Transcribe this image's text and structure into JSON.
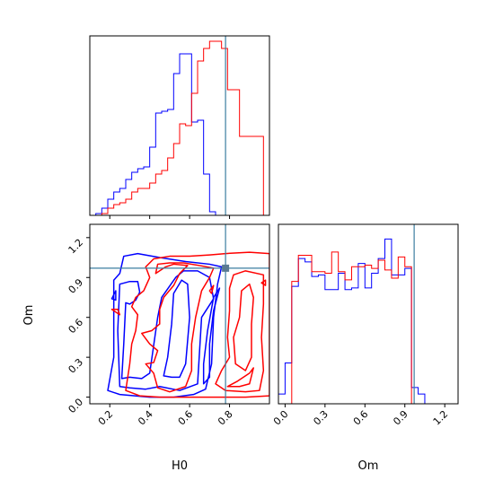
{
  "chart_data": {
    "type": "corner",
    "parameters": [
      "H0",
      "Om"
    ],
    "truth": {
      "H0": 0.78,
      "Om": 0.97
    },
    "truth_color": "#3b7ea1",
    "series": [
      {
        "color": "#0000ff"
      },
      {
        "color": "#ff0000"
      }
    ],
    "xlabel_h0": "H0",
    "xlabel_om": "Om",
    "ylabel_om": "Om",
    "h0_axis": {
      "range": [
        0.1,
        1.0
      ],
      "ticks": [
        "0.2",
        "0.4",
        "0.6",
        "0.8"
      ]
    },
    "om_axis": {
      "range": [
        -0.05,
        1.3
      ],
      "ticks": [
        "0.0",
        "0.3",
        "0.6",
        "0.9",
        "1.2"
      ]
    },
    "h0_hist": {
      "edges": [
        0.1,
        0.13,
        0.16,
        0.19,
        0.22,
        0.25,
        0.28,
        0.31,
        0.34,
        0.37,
        0.4,
        0.43,
        0.46,
        0.49,
        0.52,
        0.55,
        0.58,
        0.61,
        0.64,
        0.67,
        0.7,
        0.73,
        0.76,
        0.79,
        0.82,
        0.85,
        0.88,
        0.91,
        0.94,
        0.97,
        1.0
      ],
      "blue": [
        0,
        0.01,
        0.04,
        0.09,
        0.13,
        0.15,
        0.2,
        0.24,
        0.26,
        0.27,
        0.38,
        0.57,
        0.58,
        0.59,
        0.79,
        0.9,
        0.9,
        0.52,
        0.53,
        0.23,
        0.02,
        0,
        0,
        0,
        0,
        0,
        0,
        0,
        0,
        0
      ],
      "red": [
        0,
        0,
        0.01,
        0.04,
        0.06,
        0.07,
        0.09,
        0.13,
        0.15,
        0.15,
        0.18,
        0.23,
        0.25,
        0.32,
        0.4,
        0.51,
        0.5,
        0.68,
        0.86,
        0.93,
        0.97,
        0.97,
        0.93,
        0.7,
        0.7,
        0.44,
        0.44,
        0.44,
        0.44,
        0
      ]
    },
    "om_hist": {
      "edges": [
        -0.05,
        0.0,
        0.05,
        0.1,
        0.15,
        0.2,
        0.25,
        0.3,
        0.35,
        0.4,
        0.45,
        0.5,
        0.55,
        0.6,
        0.65,
        0.7,
        0.75,
        0.8,
        0.85,
        0.9,
        0.95,
        1.0,
        1.05,
        1.1
      ],
      "blue": [
        0.06,
        0.25,
        0.72,
        0.89,
        0.87,
        0.78,
        0.79,
        0.7,
        0.7,
        0.8,
        0.7,
        0.71,
        0.86,
        0.71,
        0.8,
        0.89,
        1.01,
        0.79,
        0.79,
        0.83,
        0.1,
        0.06,
        0
      ],
      "red": [
        0,
        0,
        0.75,
        0.91,
        0.91,
        0.81,
        0.81,
        0.8,
        0.93,
        0.81,
        0.76,
        0.84,
        0.84,
        0.85,
        0.83,
        0.88,
        0.82,
        0.77,
        0.9,
        0.84,
        0,
        0,
        0
      ]
    },
    "contours": {
      "blue": [
        [
          [
            0.19,
            0.05
          ],
          [
            0.25,
            0.02
          ],
          [
            0.4,
            0.0
          ],
          [
            0.52,
            0.0
          ],
          [
            0.62,
            0.02
          ],
          [
            0.68,
            0.06
          ],
          [
            0.71,
            0.25
          ],
          [
            0.72,
            0.6
          ],
          [
            0.74,
            0.85
          ],
          [
            0.76,
            0.98
          ],
          [
            0.7,
            1.0
          ],
          [
            0.58,
            1.02
          ],
          [
            0.45,
            1.05
          ],
          [
            0.34,
            1.08
          ],
          [
            0.27,
            1.06
          ],
          [
            0.25,
            0.93
          ],
          [
            0.22,
            0.88
          ],
          [
            0.22,
            0.3
          ],
          [
            0.19,
            0.05
          ]
        ],
        [
          [
            0.25,
            0.85
          ],
          [
            0.3,
            0.87
          ],
          [
            0.34,
            0.87
          ],
          [
            0.35,
            0.79
          ],
          [
            0.33,
            0.73
          ],
          [
            0.3,
            0.7
          ],
          [
            0.28,
            0.71
          ],
          [
            0.27,
            0.4
          ],
          [
            0.26,
            0.14
          ],
          [
            0.3,
            0.15
          ],
          [
            0.36,
            0.14
          ],
          [
            0.4,
            0.18
          ],
          [
            0.44,
            0.6
          ],
          [
            0.46,
            0.75
          ],
          [
            0.53,
            0.9
          ],
          [
            0.57,
            0.95
          ],
          [
            0.64,
            0.95
          ],
          [
            0.7,
            0.9
          ],
          [
            0.72,
            0.74
          ],
          [
            0.66,
            0.6
          ],
          [
            0.64,
            0.1
          ],
          [
            0.55,
            0.05
          ],
          [
            0.45,
            0.08
          ],
          [
            0.38,
            0.06
          ],
          [
            0.3,
            0.07
          ],
          [
            0.25,
            0.08
          ],
          [
            0.24,
            0.5
          ],
          [
            0.25,
            0.85
          ]
        ],
        [
          [
            0.47,
            0.16
          ],
          [
            0.51,
            0.15
          ],
          [
            0.55,
            0.15
          ],
          [
            0.58,
            0.25
          ],
          [
            0.6,
            0.6
          ],
          [
            0.59,
            0.85
          ],
          [
            0.56,
            0.88
          ],
          [
            0.52,
            0.78
          ],
          [
            0.51,
            0.55
          ],
          [
            0.49,
            0.3
          ],
          [
            0.47,
            0.16
          ]
        ],
        [
          [
            0.67,
            0.1
          ],
          [
            0.7,
            0.15
          ],
          [
            0.7,
            0.4
          ],
          [
            0.72,
            0.65
          ],
          [
            0.75,
            0.82
          ],
          [
            0.72,
            0.75
          ],
          [
            0.69,
            0.5
          ],
          [
            0.67,
            0.25
          ],
          [
            0.67,
            0.1
          ]
        ],
        [
          [
            0.21,
            0.74
          ],
          [
            0.23,
            0.8
          ],
          [
            0.23,
            0.73
          ],
          [
            0.21,
            0.74
          ]
        ]
      ],
      "red": [
        [
          [
            0.28,
            0.05
          ],
          [
            0.35,
            0.01
          ],
          [
            0.45,
            0.0
          ],
          [
            0.6,
            0.0
          ],
          [
            0.75,
            0.0
          ],
          [
            0.88,
            0.0
          ],
          [
            1.0,
            0.01
          ],
          [
            1.0,
            1.08
          ],
          [
            0.9,
            1.09
          ],
          [
            0.78,
            1.08
          ],
          [
            0.7,
            1.07
          ],
          [
            0.6,
            1.06
          ],
          [
            0.5,
            1.06
          ],
          [
            0.42,
            1.04
          ],
          [
            0.38,
            0.98
          ],
          [
            0.4,
            0.9
          ],
          [
            0.37,
            0.8
          ],
          [
            0.33,
            0.75
          ],
          [
            0.31,
            0.68
          ],
          [
            0.34,
            0.62
          ],
          [
            0.33,
            0.5
          ],
          [
            0.31,
            0.4
          ],
          [
            0.3,
            0.25
          ],
          [
            0.28,
            0.05
          ]
        ],
        [
          [
            0.43,
            0.93
          ],
          [
            0.48,
            0.98
          ],
          [
            0.52,
            1.0
          ],
          [
            0.59,
            0.99
          ],
          [
            0.55,
            0.93
          ],
          [
            0.52,
            0.84
          ],
          [
            0.47,
            0.75
          ],
          [
            0.45,
            0.66
          ],
          [
            0.45,
            0.55
          ],
          [
            0.41,
            0.5
          ],
          [
            0.36,
            0.48
          ],
          [
            0.4,
            0.4
          ],
          [
            0.44,
            0.35
          ],
          [
            0.42,
            0.26
          ],
          [
            0.38,
            0.25
          ],
          [
            0.42,
            0.18
          ],
          [
            0.44,
            0.07
          ],
          [
            0.5,
            0.04
          ],
          [
            0.58,
            0.08
          ],
          [
            0.61,
            0.2
          ],
          [
            0.61,
            0.4
          ],
          [
            0.63,
            0.6
          ],
          [
            0.66,
            0.8
          ],
          [
            0.7,
            0.9
          ],
          [
            0.72,
            0.97
          ],
          [
            0.65,
            0.99
          ],
          [
            0.57,
            1.01
          ],
          [
            0.5,
            1.01
          ],
          [
            0.44,
            1.0
          ],
          [
            0.43,
            0.93
          ]
        ],
        [
          [
            0.73,
            0.1
          ],
          [
            0.78,
            0.05
          ],
          [
            0.88,
            0.04
          ],
          [
            0.95,
            0.05
          ],
          [
            0.97,
            0.2
          ],
          [
            0.96,
            0.45
          ],
          [
            0.97,
            0.7
          ],
          [
            0.97,
            0.92
          ],
          [
            0.88,
            0.95
          ],
          [
            0.82,
            0.92
          ],
          [
            0.8,
            0.82
          ],
          [
            0.8,
            0.65
          ],
          [
            0.79,
            0.45
          ],
          [
            0.8,
            0.3
          ],
          [
            0.76,
            0.2
          ],
          [
            0.73,
            0.1
          ]
        ],
        [
          [
            0.83,
            0.25
          ],
          [
            0.88,
            0.2
          ],
          [
            0.91,
            0.3
          ],
          [
            0.91,
            0.55
          ],
          [
            0.92,
            0.75
          ],
          [
            0.9,
            0.85
          ],
          [
            0.86,
            0.8
          ],
          [
            0.85,
            0.6
          ],
          [
            0.82,
            0.45
          ],
          [
            0.83,
            0.25
          ]
        ],
        [
          [
            0.79,
            0.08
          ],
          [
            0.85,
            0.08
          ],
          [
            0.9,
            0.1
          ],
          [
            0.92,
            0.22
          ],
          [
            0.9,
            0.18
          ],
          [
            0.84,
            0.12
          ],
          [
            0.79,
            0.08
          ]
        ],
        [
          [
            0.7,
            0.8
          ],
          [
            0.72,
            0.84
          ],
          [
            0.71,
            0.78
          ],
          [
            0.7,
            0.8
          ]
        ],
        [
          [
            0.21,
            0.66
          ],
          [
            0.25,
            0.62
          ],
          [
            0.24,
            0.66
          ],
          [
            0.21,
            0.66
          ]
        ],
        [
          [
            0.96,
            0.86
          ],
          [
            0.98,
            0.88
          ],
          [
            0.98,
            0.84
          ],
          [
            0.96,
            0.86
          ]
        ]
      ]
    }
  }
}
